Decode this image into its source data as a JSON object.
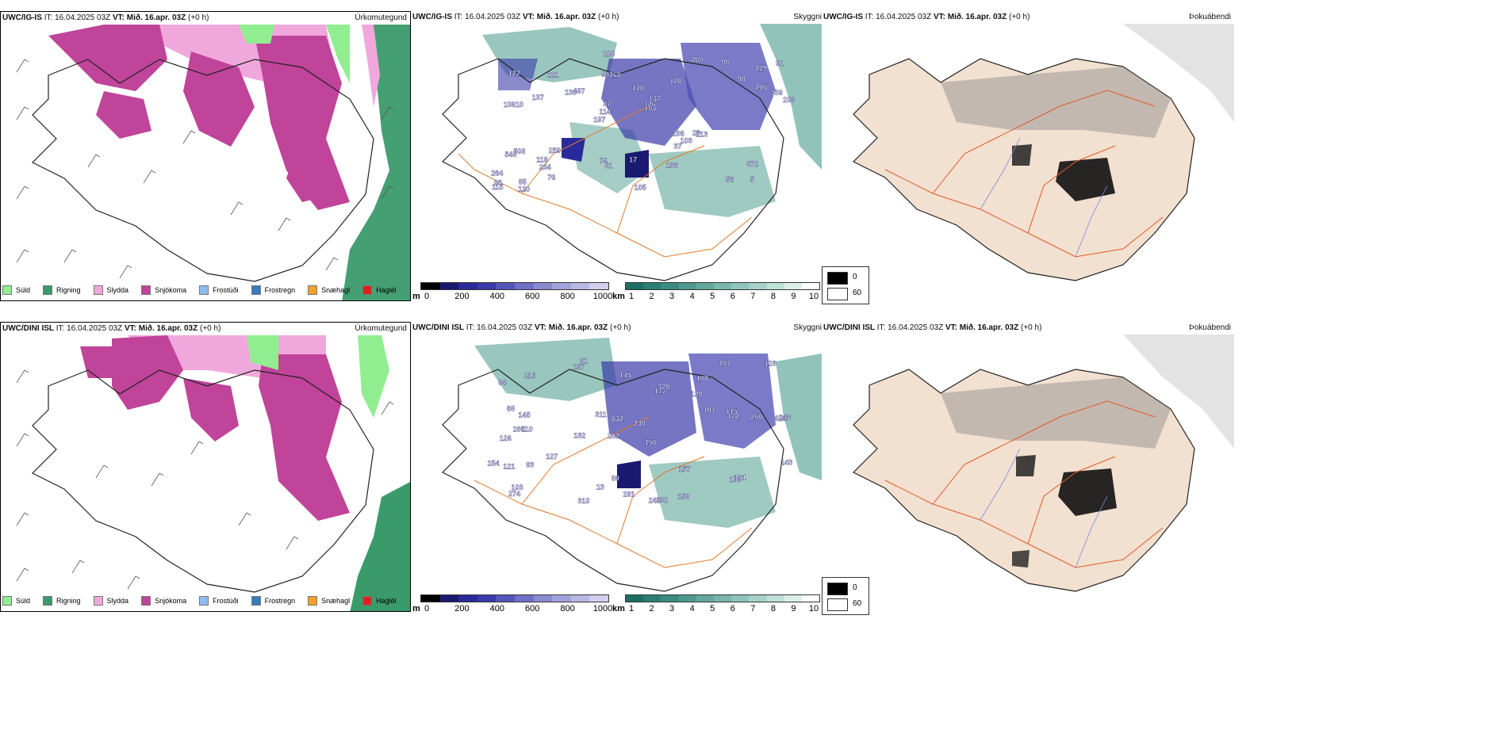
{
  "rows": [
    {
      "model": "UWC/IG-IS",
      "it_label": "IT:",
      "it_value": "16.04.2025 03Z",
      "vt_label": "VT:",
      "vt_value": "Mið. 16.apr. 03Z",
      "offset": "(+0 h)"
    },
    {
      "model": "UWC/DINI ISL",
      "it_label": "IT:",
      "it_value": "16.04.2025 03Z",
      "vt_label": "VT:",
      "vt_value": "Mið. 16.apr. 03Z",
      "offset": "(+0 h)"
    }
  ],
  "panel_titles": {
    "precip": "Úrkomutegund",
    "cloud": "Skyggni",
    "fog": "Þokuábendi"
  },
  "precip_legend": [
    {
      "label": "Súld",
      "color": "#90ee90"
    },
    {
      "label": "Rigning",
      "color": "#3a9a6a"
    },
    {
      "label": "Slydda",
      "color": "#f0a8dc"
    },
    {
      "label": "Snjókoma",
      "color": "#c0449a"
    },
    {
      "label": "Frostúði",
      "color": "#8fbcf0"
    },
    {
      "label": "Frostregn",
      "color": "#3a7ac0"
    },
    {
      "label": "Snæhagl",
      "color": "#f0a030"
    },
    {
      "label": "Haglél",
      "color": "#e02020"
    }
  ],
  "ceiling_bar": {
    "unit": "m",
    "ticks": [
      "0",
      "200",
      "400",
      "600",
      "800",
      "1000"
    ],
    "colors": [
      "#000000",
      "#1a1a70",
      "#2a2a9a",
      "#3a3aaa",
      "#5555bb",
      "#7070c6",
      "#8a8ad0",
      "#a2a2da",
      "#b8b8e4",
      "#d0d0ee"
    ]
  },
  "visibility_bar": {
    "unit": "km",
    "ticks": [
      "1",
      "2",
      "3",
      "4",
      "5",
      "6",
      "7",
      "8",
      "9",
      "10"
    ],
    "colors": [
      "#1d6e64",
      "#2b7e74",
      "#3a8c82",
      "#4d9a90",
      "#62a89e",
      "#78b6ad",
      "#8fc4bc",
      "#a7d2cb",
      "#c0e0da",
      "#dcefec",
      "#ffffff"
    ]
  },
  "fog_legend": [
    {
      "label": "0",
      "color": "#000000"
    },
    {
      "label": "60",
      "color": "#ffffff"
    }
  ],
  "cloud_labels_top": [
    "5",
    "13610",
    "229",
    "197",
    "128",
    "85",
    "94",
    "120",
    "508",
    "487",
    "264",
    "234",
    "268",
    "137",
    "213",
    "122",
    "228",
    "236",
    "296",
    "295",
    "114",
    "74",
    "37",
    "221",
    "289",
    "259",
    "56",
    "872",
    "23",
    "105",
    "130",
    "137",
    "37",
    "76",
    "339",
    "126",
    "96",
    "81",
    "103",
    "548",
    "98",
    "91",
    "103",
    "196",
    "119",
    "120",
    "115",
    "17",
    "96"
  ],
  "cloud_labels_bottom": [
    "91",
    "108",
    "628",
    "202",
    "156",
    "110",
    "94",
    "128",
    "126",
    "177",
    "230",
    "274",
    "167",
    "182",
    "245",
    "232",
    "89",
    "107",
    "101",
    "127",
    "145",
    "295",
    "248",
    "259",
    "254",
    "68",
    "832",
    "172",
    "101",
    "121",
    "106",
    "328",
    "83",
    "311",
    "157",
    "143",
    "115",
    "13",
    "128",
    "145",
    "103",
    "310",
    "159",
    "216",
    "291"
  ]
}
